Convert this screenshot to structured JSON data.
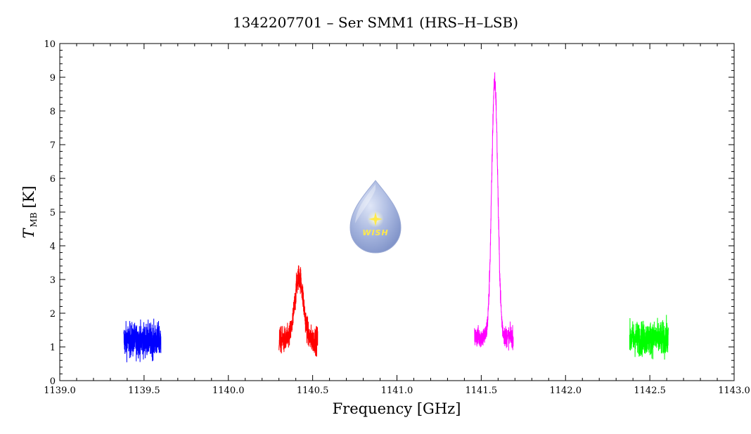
{
  "chart_data": {
    "type": "line",
    "title": "1342207701 – Ser SMM1 (HRS–H–LSB)",
    "xlabel": "Frequency [GHz]",
    "ylabel_main": "T",
    "ylabel_sub": "MB",
    "ylabel_unit": "[K]",
    "xlim": [
      1139.0,
      1143.0
    ],
    "ylim": [
      0,
      10
    ],
    "x_ticks": [
      "1139.0",
      "1139.5",
      "1140.0",
      "1140.5",
      "1141.0",
      "1141.5",
      "1142.0",
      "1142.5",
      "1143.0"
    ],
    "y_ticks": [
      "0",
      "1",
      "2",
      "3",
      "4",
      "5",
      "6",
      "7",
      "8",
      "9",
      "10"
    ],
    "grid": false,
    "logo_text": "WISH",
    "series": [
      {
        "color": "#0000ff",
        "x_range": [
          1139.38,
          1139.6
        ],
        "baseline": 1.2,
        "noise": 0.45,
        "peak": null
      },
      {
        "color": "#ff0000",
        "x_range": [
          1140.3,
          1140.53
        ],
        "baseline": 1.2,
        "noise": 0.35,
        "peak": {
          "center": 1140.42,
          "height": 1.9,
          "width": 0.025
        }
      },
      {
        "color": "#ff00ff",
        "x_range": [
          1141.46,
          1141.69
        ],
        "baseline": 1.3,
        "noise": 0.28,
        "peak": {
          "center": 1141.58,
          "height": 7.6,
          "width": 0.018
        }
      },
      {
        "color": "#00ff00",
        "x_range": [
          1142.38,
          1142.61
        ],
        "baseline": 1.25,
        "noise": 0.45,
        "peak": null
      }
    ]
  }
}
